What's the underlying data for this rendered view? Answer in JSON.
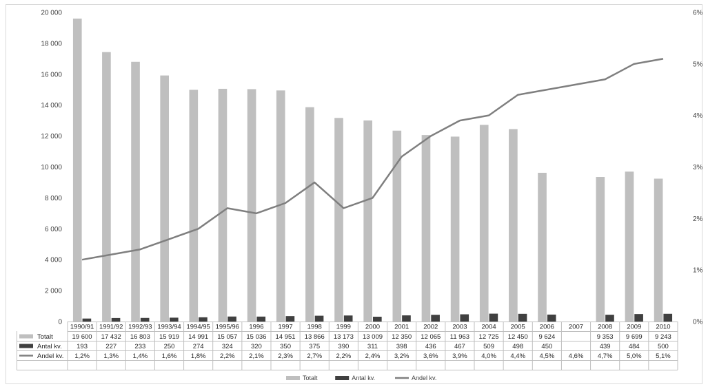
{
  "chart_data": {
    "type": "bar",
    "categories": [
      "1990/91",
      "1991/92",
      "1992/93",
      "1993/94",
      "1994/95",
      "1995/96",
      "1996",
      "1997",
      "1998",
      "1999",
      "2000",
      "2001",
      "2002",
      "2003",
      "2004",
      "2005",
      "2006",
      "2007",
      "2008",
      "2009",
      "2010"
    ],
    "series": [
      {
        "name": "Totalt",
        "type": "bar",
        "axis": "left",
        "color": "#bfbfbf",
        "values": [
          19600,
          17432,
          16803,
          15919,
          14991,
          15057,
          15036,
          14951,
          13866,
          13173,
          13009,
          12350,
          12065,
          11963,
          12725,
          12450,
          9624,
          null,
          9353,
          9699,
          9243
        ],
        "labels": [
          "19 600",
          "17 432",
          "16 803",
          "15 919",
          "14 991",
          "15 057",
          "15 036",
          "14 951",
          "13 866",
          "13 173",
          "13 009",
          "12 350",
          "12 065",
          "11 963",
          "12 725",
          "12 450",
          "9 624",
          "",
          "9 353",
          "9 699",
          "9 243"
        ]
      },
      {
        "name": "Antal kv.",
        "type": "bar",
        "axis": "left",
        "color": "#404040",
        "values": [
          193,
          227,
          233,
          250,
          274,
          324,
          320,
          350,
          375,
          390,
          311,
          398,
          436,
          467,
          509,
          498,
          450,
          null,
          439,
          484,
          500
        ],
        "labels": [
          "193",
          "227",
          "233",
          "250",
          "274",
          "324",
          "320",
          "350",
          "375",
          "390",
          "311",
          "398",
          "436",
          "467",
          "509",
          "498",
          "450",
          "",
          "439",
          "484",
          "500"
        ]
      },
      {
        "name": "Andel kv.",
        "type": "line",
        "axis": "right",
        "color": "#7f7f7f",
        "values": [
          1.2,
          1.3,
          1.4,
          1.6,
          1.8,
          2.2,
          2.1,
          2.3,
          2.7,
          2.2,
          2.4,
          3.2,
          3.6,
          3.9,
          4.0,
          4.4,
          4.5,
          4.6,
          4.7,
          5.0,
          5.1
        ],
        "labels": [
          "1,2%",
          "1,3%",
          "1,4%",
          "1,6%",
          "1,8%",
          "2,2%",
          "2,1%",
          "2,3%",
          "2,7%",
          "2,2%",
          "2,4%",
          "3,2%",
          "3,6%",
          "3,9%",
          "4,0%",
          "4,4%",
          "4,5%",
          "4,6%",
          "4,7%",
          "5,0%",
          "5,1%"
        ]
      }
    ],
    "y_left": {
      "min": 0,
      "max": 20000,
      "step": 2000,
      "tick_labels": [
        "0",
        "2 000",
        "4 000",
        "6 000",
        "8 000",
        "10 000",
        "12 000",
        "14 000",
        "16 000",
        "18 000",
        "20 000"
      ]
    },
    "y_right": {
      "min": 0,
      "max": 6,
      "step": 1,
      "tick_labels": [
        "0%",
        "1%",
        "2%",
        "3%",
        "4%",
        "5%",
        "6%"
      ]
    },
    "grid": false,
    "data_table": true,
    "legend": {
      "position": "bottom",
      "entries": [
        "Totalt",
        "Antal kv.",
        "Andel kv."
      ]
    }
  }
}
